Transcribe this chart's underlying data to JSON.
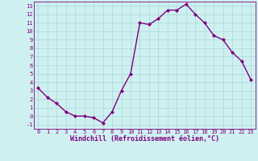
{
  "x": [
    0,
    1,
    2,
    3,
    4,
    5,
    6,
    7,
    8,
    9,
    10,
    11,
    12,
    13,
    14,
    15,
    16,
    17,
    18,
    19,
    20,
    21,
    22,
    23
  ],
  "y": [
    3.3,
    2.2,
    1.5,
    0.5,
    0.0,
    0.0,
    -0.2,
    -0.8,
    0.5,
    3.0,
    5.0,
    11.0,
    10.8,
    11.5,
    12.5,
    12.5,
    13.2,
    12.0,
    11.0,
    9.5,
    9.0,
    7.5,
    6.5,
    4.3
  ],
  "line_color": "#800080",
  "marker": "D",
  "markersize": 2.0,
  "bg_color": "#cff0f0",
  "grid_color": "#a8d8d8",
  "xlabel": "Windchill (Refroidissement éolien,°C)",
  "xlim": [
    -0.5,
    23.5
  ],
  "ylim": [
    -1.5,
    13.5
  ],
  "xticks": [
    0,
    1,
    2,
    3,
    4,
    5,
    6,
    7,
    8,
    9,
    10,
    11,
    12,
    13,
    14,
    15,
    16,
    17,
    18,
    19,
    20,
    21,
    22,
    23
  ],
  "yticks": [
    -1,
    0,
    1,
    2,
    3,
    4,
    5,
    6,
    7,
    8,
    9,
    10,
    11,
    12,
    13
  ],
  "tick_color": "#800080",
  "label_color": "#800080",
  "linewidth": 1.0,
  "tick_fontsize": 5.0,
  "xlabel_fontsize": 6.0
}
